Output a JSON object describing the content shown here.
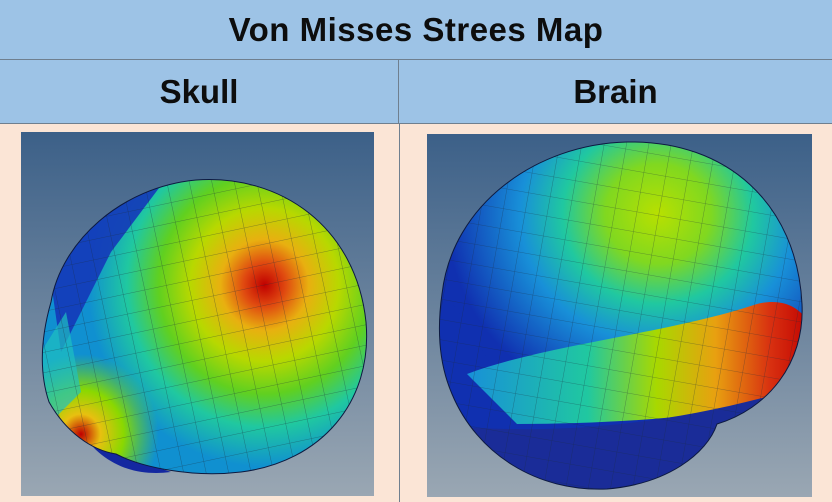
{
  "title": "Von Misses Strees Map",
  "columns": [
    "Skull",
    "Brain"
  ],
  "images": [
    {
      "icon": "skull-stress-map-image"
    },
    {
      "icon": "brain-stress-map-image"
    }
  ],
  "colors": {
    "header_bg": "#9dc3e6",
    "body_bg": "#fbe5d6",
    "viewport_top": "#3c6088",
    "viewport_bottom": "#9aa7b3"
  }
}
